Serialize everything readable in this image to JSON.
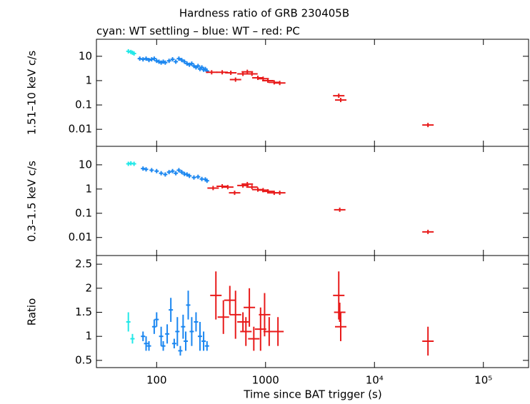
{
  "chart_data": [
    {
      "type": "scatter",
      "title": "Hardness ratio of GRB 230405B",
      "subtitle": "cyan: WT settling – blue: WT – red: PC",
      "ylabel": "1.51–10 keV c/s",
      "xlog": true,
      "ylog": true,
      "xlim": [
        28,
        260000
      ],
      "ylim": [
        0.002,
        50
      ],
      "yticks": [
        0.01,
        0.1,
        1,
        10
      ],
      "series": [
        {
          "color": "#22e8e8",
          "x": [
            55,
            58,
            60,
            62
          ],
          "values": [
            16,
            15,
            14,
            13
          ]
        },
        {
          "color": "#1a86f0",
          "x": [
            70,
            75,
            80,
            85,
            90,
            95,
            100,
            105,
            110,
            115,
            120,
            130,
            140,
            150,
            160,
            170,
            180,
            190,
            200,
            210,
            220,
            230,
            240,
            250,
            260,
            270,
            280,
            290
          ],
          "values": [
            8,
            7.5,
            8,
            7,
            7.5,
            8,
            6.5,
            6,
            5.5,
            6,
            5.5,
            6.5,
            7.5,
            6,
            8,
            7,
            6,
            5,
            4.5,
            5,
            4,
            3.5,
            4,
            3,
            3.5,
            2.8,
            3,
            2.5
          ]
        },
        {
          "color": "#e81a1a",
          "x": [
            320,
            400,
            480,
            530,
            620,
            680,
            750,
            850,
            950,
            1050,
            1200,
            1350,
            4700,
            4900,
            31000
          ],
          "values": [
            2.2,
            2.2,
            2.1,
            1.1,
            1.9,
            2.3,
            1.9,
            1.3,
            1.2,
            1.0,
            0.85,
            0.8,
            0.24,
            0.16,
            0.015
          ]
        }
      ]
    },
    {
      "type": "scatter",
      "ylabel": "0.3–1.5 keV c/s",
      "xlog": true,
      "ylog": true,
      "xlim": [
        28,
        260000
      ],
      "ylim": [
        0.0018,
        58
      ],
      "yticks": [
        0.01,
        0.1,
        1,
        10
      ],
      "series": [
        {
          "color": "#22e8e8",
          "x": [
            55,
            58,
            62
          ],
          "values": [
            11,
            11.5,
            11
          ]
        },
        {
          "color": "#1a86f0",
          "x": [
            75,
            80,
            90,
            100,
            110,
            120,
            130,
            140,
            150,
            160,
            170,
            180,
            190,
            200,
            220,
            240,
            260,
            280,
            290
          ],
          "values": [
            7,
            6.5,
            6,
            5.5,
            4.5,
            4,
            5,
            5.5,
            4.5,
            6,
            5,
            4.2,
            4,
            3.5,
            3,
            3.2,
            2.6,
            2.5,
            2.2
          ]
        },
        {
          "color": "#e81a1a",
          "x": [
            330,
            400,
            450,
            520,
            620,
            680,
            750,
            850,
            950,
            1050,
            1200,
            1350,
            4800,
            31000
          ],
          "values": [
            1.1,
            1.3,
            1.2,
            0.7,
            1.4,
            1.6,
            1.2,
            0.95,
            0.9,
            0.8,
            0.7,
            0.7,
            0.14,
            0.017
          ]
        }
      ]
    },
    {
      "type": "scatter",
      "ylabel": "Ratio",
      "xlabel": "Time since BAT trigger (s)",
      "xlog": true,
      "ylog": false,
      "xlim": [
        28,
        260000
      ],
      "ylim": [
        0.35,
        2.68
      ],
      "yticks": [
        0.5,
        1,
        1.5,
        2,
        2.5
      ],
      "xticks": [
        100,
        1000,
        {
          "value": 10000,
          "label": "10⁴"
        },
        {
          "value": 100000,
          "label": "10⁵"
        }
      ],
      "series": [
        {
          "color": "#22e8e8",
          "x": [
            55,
            60
          ],
          "values": [
            1.3,
            0.95
          ],
          "errors": [
            0.2,
            0.1
          ]
        },
        {
          "color": "#1a86f0",
          "x": [
            75,
            80,
            85,
            95,
            100,
            110,
            115,
            125,
            135,
            145,
            155,
            165,
            175,
            185,
            195,
            210,
            230,
            250,
            270,
            290
          ],
          "values": [
            1.0,
            0.85,
            0.8,
            1.2,
            1.35,
            1.0,
            0.8,
            1.05,
            1.55,
            0.85,
            1.1,
            0.7,
            1.2,
            0.9,
            1.65,
            1.1,
            1.3,
            1.0,
            0.9,
            0.8
          ],
          "errors": [
            0.1,
            0.15,
            0.1,
            0.15,
            0.15,
            0.2,
            0.1,
            0.2,
            0.25,
            0.1,
            0.3,
            0.1,
            0.25,
            0.2,
            0.3,
            0.3,
            0.2,
            0.3,
            0.2,
            0.1
          ]
        },
        {
          "color": "#e81a1a",
          "x": [
            350,
            410,
            470,
            530,
            620,
            660,
            710,
            780,
            900,
            980,
            1080,
            1300,
            4700,
            4800,
            4900,
            31000
          ],
          "values": [
            1.85,
            1.4,
            1.75,
            1.45,
            1.3,
            1.1,
            1.6,
            0.95,
            1.15,
            1.45,
            1.1,
            1.1,
            1.85,
            1.5,
            1.2,
            0.9
          ],
          "errors": [
            0.5,
            0.35,
            0.3,
            0.5,
            0.2,
            0.3,
            0.4,
            0.25,
            0.45,
            0.45,
            0.3,
            0.3,
            0.5,
            0.2,
            0.3,
            0.3
          ]
        }
      ]
    }
  ]
}
